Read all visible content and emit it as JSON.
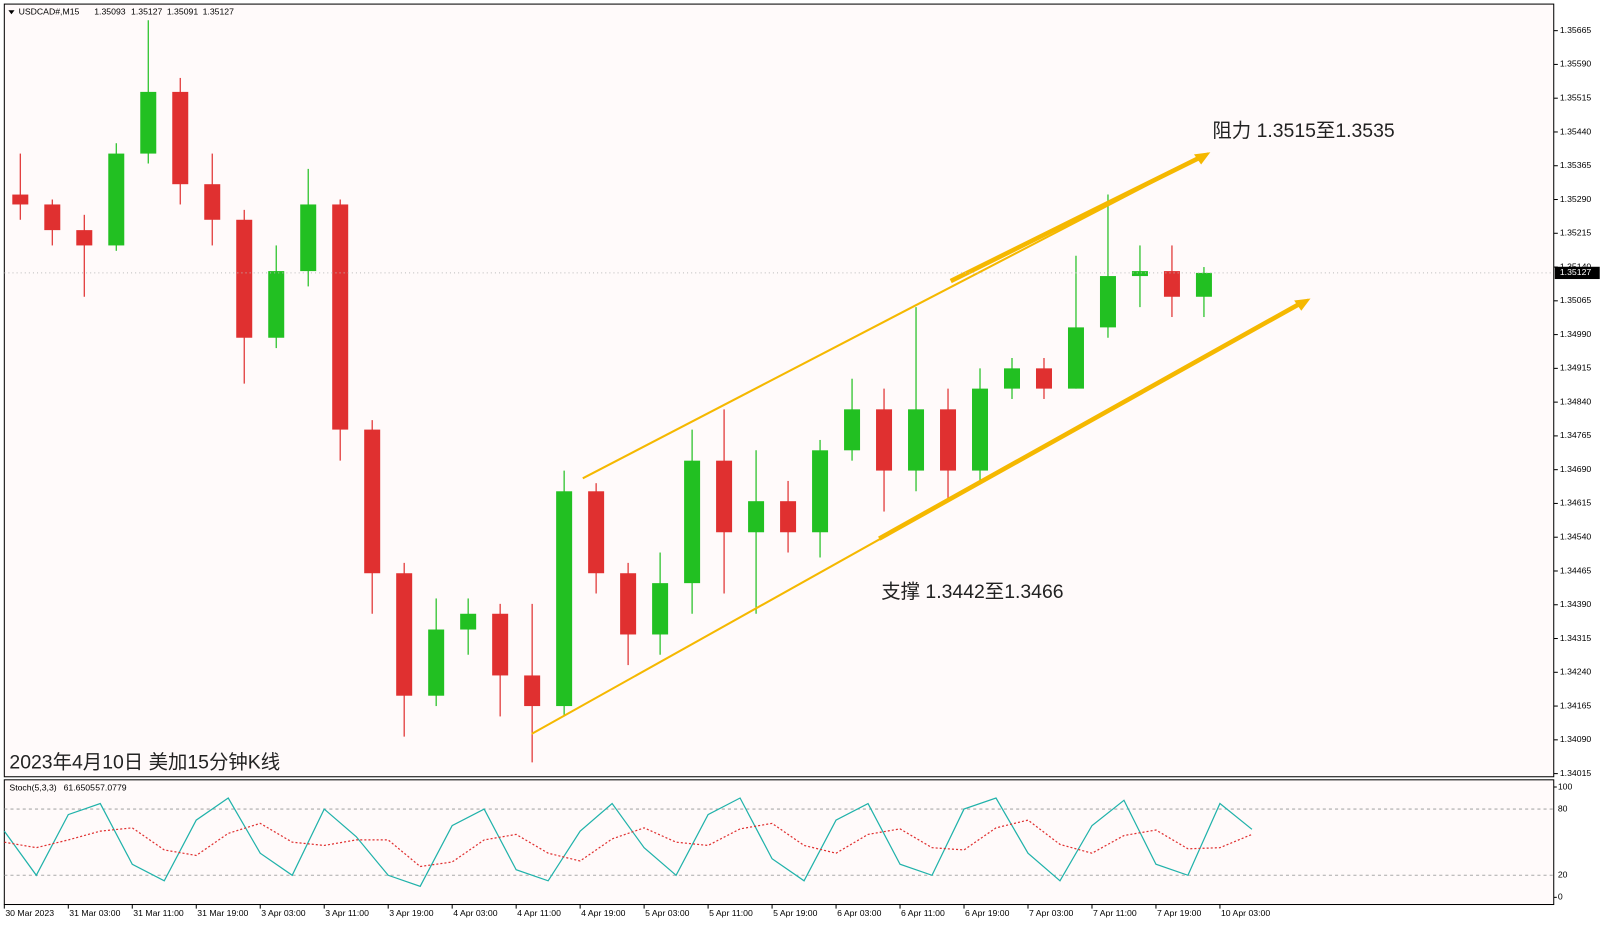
{
  "header": {
    "symbol": "USDCAD#,M15",
    "open": "1.35093",
    "high": "1.35127",
    "low": "1.35091",
    "close": "1.35127"
  },
  "chart_data": [
    {
      "type": "candlestick",
      "annotations": [
        "阻力 1.3515至1.3535",
        "支撑 1.3442至1.3466",
        "2023年4月10日 美加15分钟K线"
      ],
      "x_labels": [
        "30 Mar 2023",
        "31 Mar 03:00",
        "31 Mar 11:00",
        "31 Mar 19:00",
        "3 Apr 03:00",
        "3 Apr 11:00",
        "3 Apr 19:00",
        "4 Apr 03:00",
        "4 Apr 11:00",
        "4 Apr 19:00",
        "5 Apr 03:00",
        "5 Apr 11:00",
        "5 Apr 19:00",
        "6 Apr 03:00",
        "6 Apr 11:00",
        "6 Apr 19:00",
        "7 Apr 03:00",
        "7 Apr 11:00",
        "7 Apr 19:00",
        "10 Apr 03:00"
      ],
      "open": [
        1.35301,
        1.35279,
        1.35222,
        1.35188,
        1.35392,
        1.35529,
        1.35324,
        1.35245,
        1.34983,
        1.35131,
        1.35279,
        1.34779,
        1.3446,
        1.34188,
        1.34335,
        1.3437,
        1.34233,
        1.34165,
        1.34642,
        1.3446,
        1.34324,
        1.34438,
        1.3471,
        1.34551,
        1.3462,
        1.34551,
        1.34733,
        1.34824,
        1.34688,
        1.34824,
        1.34688,
        1.3487,
        1.34915,
        1.3487,
        1.35006,
        1.3512,
        1.35131,
        1.35074
      ],
      "high": [
        1.35392,
        1.3529,
        1.35256,
        1.35415,
        1.35688,
        1.3556,
        1.35392,
        1.35267,
        1.35188,
        1.35358,
        1.3529,
        1.348,
        1.34483,
        1.34404,
        1.34404,
        1.34392,
        1.34392,
        1.34688,
        1.3466,
        1.34483,
        1.34506,
        1.34779,
        1.34824,
        1.34733,
        1.34665,
        1.34756,
        1.34892,
        1.3487,
        1.35051,
        1.3487,
        1.34915,
        1.34938,
        1.34938,
        1.35165,
        1.35301,
        1.35188,
        1.35188,
        1.3514
      ],
      "low": [
        1.35245,
        1.35188,
        1.35074,
        1.35176,
        1.3537,
        1.35279,
        1.35188,
        1.34881,
        1.3496,
        1.35097,
        1.3471,
        1.3437,
        1.34097,
        1.34165,
        1.34279,
        1.34142,
        1.3404,
        1.34142,
        1.34415,
        1.34256,
        1.34279,
        1.3437,
        1.34415,
        1.3437,
        1.34506,
        1.34495,
        1.3471,
        1.34597,
        1.34642,
        1.3462,
        1.34665,
        1.34847,
        1.34847,
        1.3487,
        1.34983,
        1.35051,
        1.35029,
        1.35029
      ],
      "close": [
        1.35279,
        1.35222,
        1.35188,
        1.35392,
        1.35529,
        1.35324,
        1.35245,
        1.34983,
        1.35131,
        1.35279,
        1.34779,
        1.3446,
        1.34188,
        1.34335,
        1.3437,
        1.34233,
        1.34165,
        1.34642,
        1.3446,
        1.34324,
        1.34438,
        1.3471,
        1.34551,
        1.3462,
        1.34551,
        1.34733,
        1.34824,
        1.34688,
        1.34824,
        1.34688,
        1.3487,
        1.34915,
        1.3487,
        1.35006,
        1.3512,
        1.35131,
        1.35074,
        1.35127
      ],
      "up_color": "#22c022",
      "down_color": "#e03030",
      "ylim": [
        1.34008,
        1.35724
      ],
      "yticks": [
        1.35665,
        {
          "value": 1.3559,
          "label": "1.35590"
        },
        1.35515,
        {
          "value": 1.3544,
          "label": "1.35440"
        },
        1.35365,
        {
          "value": 1.3529,
          "label": "1.35290"
        },
        1.35215,
        {
          "value": 1.3514,
          "label": "1.35140"
        },
        1.35065,
        {
          "value": 1.3499,
          "label": "1.34990"
        },
        1.34915,
        {
          "value": 1.3484,
          "label": "1.34840"
        },
        1.34765,
        {
          "value": 1.3469,
          "label": "1.34690"
        },
        1.34615,
        {
          "value": 1.3454,
          "label": "1.34540"
        },
        1.34465,
        {
          "value": 1.3439,
          "label": "1.34390"
        },
        1.34315,
        {
          "value": 1.3424,
          "label": "1.34240"
        },
        1.34165,
        {
          "value": 1.3409,
          "label": "1.34090"
        },
        1.34015
      ]
    },
    {
      "type": "line",
      "title": "Stoch(5,3,3)",
      "series": [
        {
          "color": "#20b2aa",
          "values": [
            60,
            20,
            75,
            85,
            30,
            15,
            70,
            90,
            40,
            20,
            80,
            55,
            20,
            10,
            65,
            80,
            25,
            15,
            60,
            85,
            45,
            20,
            75,
            90,
            35,
            15,
            70,
            85,
            30,
            20,
            80,
            90,
            40,
            15,
            65,
            88,
            30,
            20,
            85,
            61.6505
          ]
        },
        {
          "color": "#e03030",
          "values": [
            50,
            45,
            52,
            60,
            63,
            43,
            38,
            58,
            67,
            50,
            47,
            52,
            52,
            28,
            32,
            52,
            57,
            40,
            33,
            53,
            63,
            50,
            47,
            62,
            67,
            47,
            40,
            57,
            62,
            45,
            43,
            63,
            70,
            48,
            40,
            56,
            61,
            44,
            45,
            57.0779
          ]
        }
      ],
      "ylim": [
        -6.5,
        106.5
      ],
      "yticks": [
        100,
        80,
        20,
        0
      ]
    }
  ]
}
